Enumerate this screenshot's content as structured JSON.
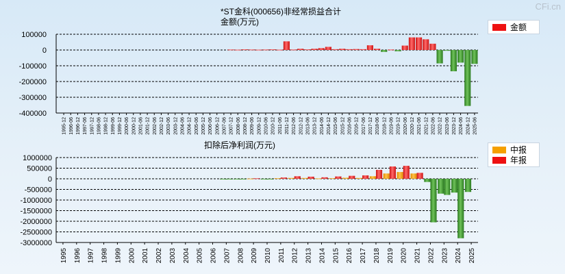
{
  "watermark": "CFi.cn",
  "chart_data": [
    {
      "type": "bar",
      "title": "*ST金科(000656)非经常损益合计",
      "ylabel": "金额(万元)",
      "ylim": [
        -400000,
        100000
      ],
      "yticks": [
        100000,
        0,
        -100000,
        -200000,
        -300000,
        -400000
      ],
      "legend": [
        {
          "name": "金额",
          "color": "#ee1111"
        }
      ],
      "categories": [
        "1995-12",
        "1996-06",
        "1996-12",
        "1997-06",
        "1997-12",
        "1998-06",
        "1998-12",
        "1999-06",
        "1999-12",
        "2000-06",
        "2000-12",
        "2001-06",
        "2001-12",
        "2002-06",
        "2002-12",
        "2003-06",
        "2003-12",
        "2004-06",
        "2004-12",
        "2005-06",
        "2005-12",
        "2006-06",
        "2006-12",
        "2007-06",
        "2007-12",
        "2008-06",
        "2008-12",
        "2009-06",
        "2009-12",
        "2010-06",
        "2010-12",
        "2011-06",
        "2011-12",
        "2012-06",
        "2012-12",
        "2013-06",
        "2013-12",
        "2014-06",
        "2014-12",
        "2015-06",
        "2015-12",
        "2016-06",
        "2016-12",
        "2017-06",
        "2017-12",
        "2018-06",
        "2018-12",
        "2019-06",
        "2019-12",
        "2020-06",
        "2020-12",
        "2021-06",
        "2021-12",
        "2022-06",
        "2022-12",
        "2023-06",
        "2023-12",
        "2024-06",
        "2024-12",
        "2025-06"
      ],
      "values": [
        0,
        0,
        0,
        0,
        0,
        0,
        0,
        0,
        0,
        0,
        0,
        0,
        0,
        0,
        0,
        0,
        0,
        0,
        0,
        0,
        0,
        0,
        0,
        0,
        3000,
        2000,
        4000,
        3000,
        2000,
        3000,
        4000,
        2000,
        55000,
        3000,
        8000,
        4000,
        8000,
        12000,
        20000,
        5000,
        8000,
        5000,
        6000,
        5000,
        30000,
        8000,
        -12000,
        3000,
        -8000,
        28000,
        80000,
        80000,
        68000,
        40000,
        -85000,
        -5000,
        -135000,
        -80000,
        -355000,
        -88000
      ]
    },
    {
      "type": "bar",
      "title": "扣除后净利润(万元)",
      "ylim": [
        -3000000,
        1000000
      ],
      "yticks": [
        1000000,
        500000,
        0,
        -500000,
        -1000000,
        -1500000,
        -2000000,
        -2500000,
        -3000000
      ],
      "legend": [
        {
          "name": "中报",
          "color": "#f5a000"
        },
        {
          "name": "年报",
          "color": "#ee1111"
        }
      ],
      "categories": [
        "1995",
        "1996",
        "1997",
        "1998",
        "1999",
        "2000",
        "2001",
        "2002",
        "2003",
        "2004",
        "2005",
        "2006",
        "2007",
        "2008",
        "2009",
        "2010",
        "2011",
        "2012",
        "2013",
        "2014",
        "2015",
        "2016",
        "2017",
        "2018",
        "2019",
        "2020",
        "2021",
        "2022",
        "2023",
        "2024",
        "2025"
      ],
      "series": [
        {
          "name": "中报",
          "values": [
            0,
            0,
            0,
            0,
            0,
            0,
            0,
            0,
            0,
            0,
            0,
            0,
            -20000,
            -30000,
            10000,
            -30000,
            30000,
            40000,
            40000,
            20000,
            30000,
            50000,
            40000,
            120000,
            250000,
            320000,
            250000,
            -150000,
            -700000,
            -650000,
            -620000
          ]
        },
        {
          "name": "年报",
          "values": [
            0,
            0,
            0,
            0,
            0,
            0,
            0,
            0,
            0,
            0,
            0,
            0,
            -20000,
            -30000,
            25000,
            -30000,
            60000,
            120000,
            100000,
            70000,
            110000,
            140000,
            160000,
            420000,
            580000,
            610000,
            280000,
            -2050000,
            -760000,
            -2800000,
            null
          ]
        }
      ]
    }
  ]
}
